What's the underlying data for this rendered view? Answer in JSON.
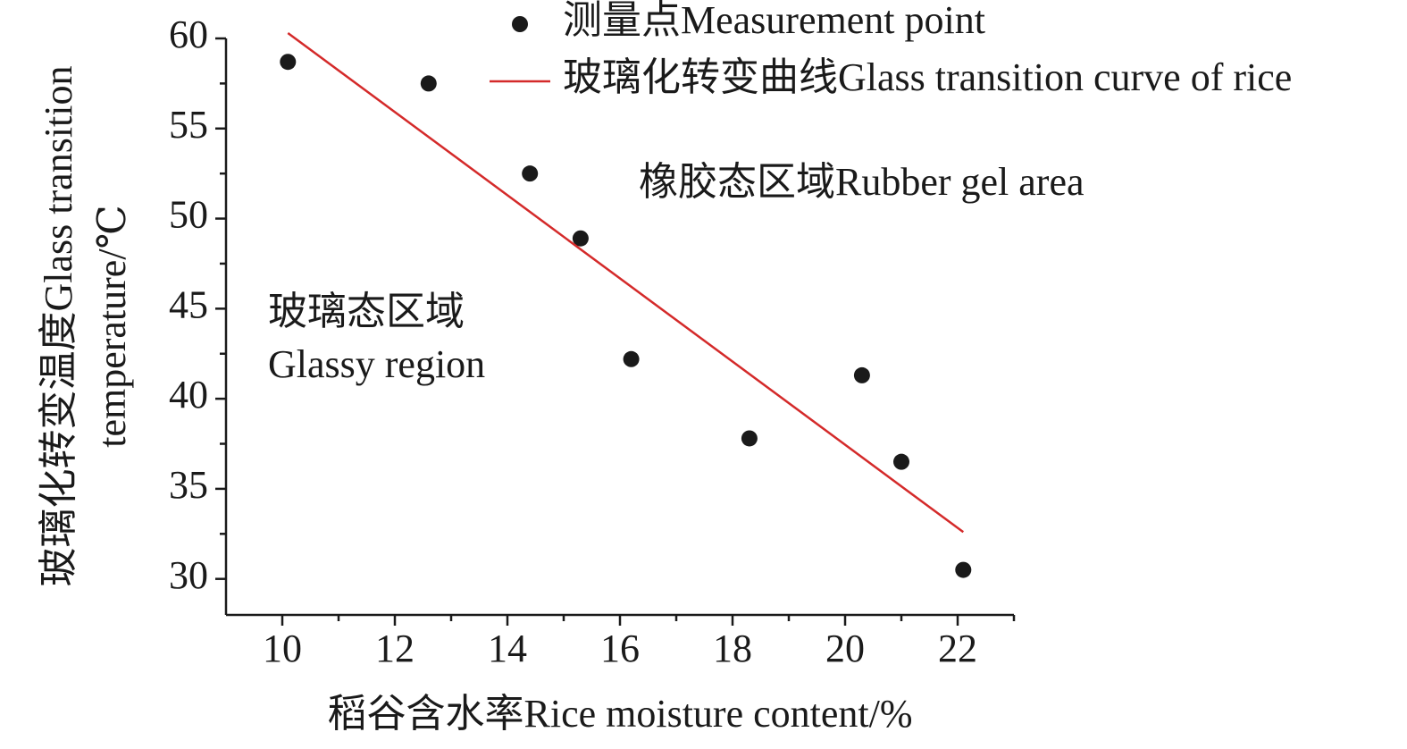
{
  "chart_data": {
    "type": "scatter",
    "xlabel": "稻谷含水率Rice moisture content/%",
    "ylabel": [
      "玻璃化转变温度Glass transition",
      "temperature/℃"
    ],
    "xlim": [
      9,
      23
    ],
    "ylim": [
      28,
      60
    ],
    "xticks": [
      10,
      12,
      14,
      16,
      18,
      20,
      22
    ],
    "xminorticks": [
      11,
      13,
      15,
      17,
      19,
      21,
      23
    ],
    "yticks": [
      30,
      35,
      40,
      45,
      50,
      55,
      60
    ],
    "yminorticks": [
      32.5,
      37.5,
      42.5,
      47.5,
      52.5,
      57.5
    ],
    "series": [
      {
        "name": "测量点Measurement point",
        "type": "scatter",
        "color": "#1a1a1a",
        "x": [
          10.1,
          12.6,
          14.4,
          15.3,
          16.2,
          18.3,
          20.3,
          21.0,
          22.1
        ],
        "values": [
          58.7,
          57.5,
          52.5,
          48.9,
          42.2,
          37.8,
          41.3,
          36.5,
          30.5
        ]
      },
      {
        "name": "玻璃化转变曲线Glass transition curve of rice",
        "type": "line",
        "color": "#d42a2a",
        "x": [
          10.1,
          22.1
        ],
        "values": [
          60.3,
          32.6
        ]
      }
    ],
    "annotations": [
      "橡胶态区域Rubber gel area",
      "玻璃态区域",
      "Glassy region"
    ]
  }
}
